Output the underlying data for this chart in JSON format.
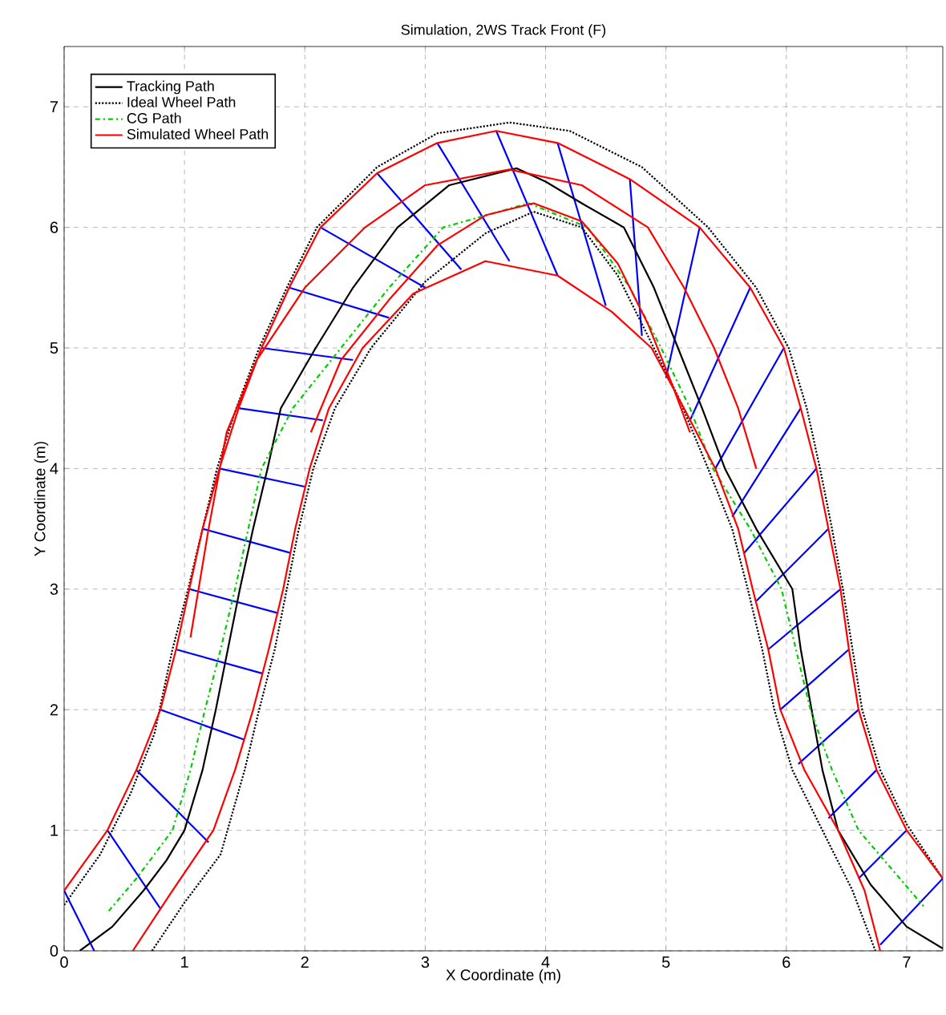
{
  "chart_data": {
    "type": "line",
    "title": "Simulation, 2WS Track Front (F)",
    "xlabel": "X Coordinate (m)",
    "ylabel": "Y Coordinate (m)",
    "xlim": [
      0,
      7.3
    ],
    "ylim": [
      0,
      7.5
    ],
    "xticks": [
      0,
      1,
      2,
      3,
      4,
      5,
      6,
      7
    ],
    "yticks": [
      0,
      1,
      2,
      3,
      4,
      5,
      6,
      7
    ],
    "grid": true,
    "legend": "top left",
    "series": [
      {
        "color": "#0000ff",
        "line_style": "solid",
        "x": [
          0,
          0.25,
          null,
          0.36,
          0.8,
          null,
          0.6,
          1.2,
          null,
          0.8,
          1.5,
          null,
          0.93,
          1.65,
          null,
          1.04,
          1.78,
          null,
          1.15,
          1.88,
          null,
          1.29,
          2.0,
          null,
          1.45,
          2.15,
          null,
          1.64,
          2.4,
          null,
          1.87,
          2.7,
          null,
          2.13,
          3.0,
          null,
          2.6,
          3.3,
          null,
          3.1,
          3.7,
          null,
          3.59,
          4.1,
          null,
          4.1,
          4.5,
          null,
          4.7,
          4.8,
          null,
          5.28,
          5.0,
          null,
          5.7,
          5.2,
          null,
          5.98,
          5.41,
          null,
          6.12,
          5.55,
          null,
          6.25,
          5.65,
          null,
          6.35,
          5.75,
          null,
          6.45,
          5.85,
          null,
          6.52,
          5.95,
          null,
          6.6,
          6.1,
          null,
          6.75,
          6.35,
          null,
          7.0,
          6.6,
          null,
          7.3,
          6.78
        ],
        "values": [
          0.5,
          0,
          null,
          1.0,
          0.35,
          null,
          1.5,
          0.9,
          null,
          2.0,
          1.75,
          null,
          2.5,
          2.3,
          null,
          3.0,
          2.8,
          null,
          3.5,
          3.3,
          null,
          4.0,
          3.85,
          null,
          4.5,
          4.4,
          null,
          5.0,
          4.9,
          null,
          5.5,
          5.25,
          null,
          6.0,
          5.5,
          null,
          6.45,
          5.65,
          null,
          6.7,
          5.72,
          null,
          6.8,
          5.6,
          null,
          6.7,
          5.35,
          null,
          6.4,
          5.1,
          null,
          6.0,
          4.75,
          null,
          5.5,
          4.4,
          null,
          5.0,
          4.0,
          null,
          4.5,
          3.6,
          null,
          4.0,
          3.3,
          null,
          3.5,
          2.9,
          null,
          3.0,
          2.5,
          null,
          2.5,
          2.0,
          null,
          2.0,
          1.55,
          null,
          1.5,
          1.1,
          null,
          1.0,
          0.6,
          null,
          0.6,
          0.05
        ]
      },
      {
        "name": "Tracking Path",
        "color": "#000000",
        "line_style": "solid",
        "x": [
          0.13,
          0.4,
          0.66,
          0.85,
          1.0,
          1.15,
          1.26,
          1.36,
          1.46,
          1.57,
          1.69,
          1.8,
          2.09,
          2.4,
          2.77,
          3.2,
          3.76,
          4.0,
          4.3,
          4.65,
          4.9,
          5.1,
          5.3,
          5.49,
          5.75,
          6.05,
          6.12,
          6.21,
          6.3,
          6.43,
          6.7,
          7.0,
          7.3
        ],
        "values": [
          0,
          0.2,
          0.5,
          0.75,
          1.0,
          1.5,
          2.0,
          2.5,
          3.0,
          3.5,
          4.0,
          4.5,
          5.0,
          5.5,
          6.0,
          6.35,
          6.49,
          6.38,
          6.2,
          6.0,
          5.5,
          5.0,
          4.5,
          4.0,
          3.5,
          3.0,
          2.5,
          2.0,
          1.5,
          1.0,
          0.55,
          0.2,
          0.02
        ]
      },
      {
        "name": "Ideal Wheel Path",
        "color": "#000000",
        "line_style": "dotted",
        "x": [
          0,
          0.3,
          0.55,
          0.75,
          0.9,
          1.03,
          1.15,
          1.27,
          1.43,
          1.62,
          1.85,
          2.1,
          2.6,
          3.1,
          3.7,
          4.2,
          4.8,
          5.35,
          5.75,
          6.02,
          6.17,
          6.28,
          6.38,
          6.47,
          6.55,
          6.63,
          6.78,
          7.0,
          7.3,
          null,
          0.73,
          1.0,
          1.3,
          1.5,
          1.62,
          1.75,
          1.85,
          1.95,
          2.07,
          2.25,
          2.55,
          3.0,
          3.5,
          3.9,
          4.3,
          4.6,
          4.85,
          5.1,
          5.35,
          5.55,
          5.68,
          5.8,
          5.9,
          6.05,
          6.3,
          6.55,
          6.74
        ],
        "values": [
          0.38,
          0.8,
          1.3,
          1.8,
          2.5,
          3.0,
          3.5,
          4.0,
          4.5,
          5.0,
          5.5,
          6.0,
          6.5,
          6.78,
          6.87,
          6.8,
          6.5,
          6.0,
          5.5,
          5.0,
          4.5,
          4.0,
          3.5,
          3.0,
          2.5,
          2.0,
          1.5,
          1.05,
          0.6,
          null,
          0,
          0.4,
          0.8,
          1.5,
          2.0,
          2.5,
          3.0,
          3.5,
          4.0,
          4.5,
          5.0,
          5.55,
          5.95,
          6.13,
          6.0,
          5.6,
          5.1,
          4.6,
          4.0,
          3.5,
          3.0,
          2.5,
          2.0,
          1.5,
          1.0,
          0.5,
          0
        ]
      },
      {
        "name": "CG Path",
        "color": "#00cc00",
        "line_style": "dashdot",
        "x": [
          0.37,
          0.6,
          0.9,
          1.05,
          1.17,
          1.3,
          1.42,
          1.53,
          1.64,
          1.9,
          2.3,
          2.7,
          3.15,
          3.86,
          4.35,
          4.7,
          4.96,
          5.2,
          5.39,
          5.7,
          5.96,
          6.08,
          6.2,
          6.38,
          6.6,
          6.9,
          7.14
        ],
        "values": [
          0.33,
          0.6,
          1.0,
          1.5,
          2.0,
          2.5,
          3.0,
          3.5,
          4.0,
          4.5,
          5.0,
          5.5,
          6.0,
          6.2,
          6.0,
          5.5,
          5.0,
          4.5,
          4.0,
          3.5,
          3.0,
          2.5,
          2.0,
          1.5,
          1.0,
          0.65,
          0.37
        ]
      },
      {
        "name": "Simulated Wheel Path",
        "color": "#ff0000",
        "line_style": "solid",
        "x": [
          0,
          0.36,
          0.6,
          0.8,
          0.93,
          1.04,
          1.15,
          1.29,
          1.45,
          1.64,
          1.87,
          2.13,
          2.6,
          3.1,
          3.59,
          4.1,
          4.7,
          5.28,
          5.7,
          5.98,
          6.12,
          6.25,
          6.35,
          6.45,
          6.52,
          6.6,
          6.75,
          7.0,
          7.3,
          null,
          1.05,
          1.2,
          1.35,
          1.6,
          2.0,
          2.5,
          3.0,
          3.7,
          4.3,
          4.85,
          5.15,
          5.4,
          5.6,
          5.75,
          null,
          2.05,
          2.3,
          2.7,
          3.1,
          3.5,
          3.9,
          4.3,
          4.6,
          4.85,
          5.05,
          5.2,
          null,
          0.57,
          0.9,
          1.24,
          1.42,
          1.57,
          1.7,
          1.82,
          1.92,
          2.04,
          2.2,
          2.48,
          2.9,
          3.5,
          4.1,
          4.55,
          4.88,
          5.15,
          5.41,
          5.6,
          5.72,
          5.85,
          5.95,
          6.15,
          6.43,
          6.65,
          6.78
        ],
        "values": [
          0.5,
          1.0,
          1.5,
          2.0,
          2.5,
          3.0,
          3.5,
          4.0,
          4.5,
          5.0,
          5.5,
          6.0,
          6.45,
          6.7,
          6.8,
          6.7,
          6.4,
          6.0,
          5.5,
          5.0,
          4.5,
          4.0,
          3.5,
          3.0,
          2.5,
          2.0,
          1.5,
          1.0,
          0.6,
          null,
          2.6,
          3.5,
          4.3,
          4.9,
          5.5,
          6.0,
          6.35,
          6.48,
          6.35,
          6.0,
          5.5,
          5.0,
          4.5,
          4.0,
          null,
          4.3,
          4.9,
          5.4,
          5.85,
          6.1,
          6.2,
          6.05,
          5.7,
          5.2,
          4.7,
          4.3,
          null,
          0,
          0.5,
          1.0,
          1.5,
          2.0,
          2.5,
          3.0,
          3.5,
          4.0,
          4.5,
          5.0,
          5.45,
          5.72,
          5.6,
          5.3,
          5.0,
          4.5,
          4.0,
          3.5,
          3.0,
          2.5,
          2.0,
          1.5,
          1.0,
          0.5,
          0
        ]
      }
    ]
  }
}
